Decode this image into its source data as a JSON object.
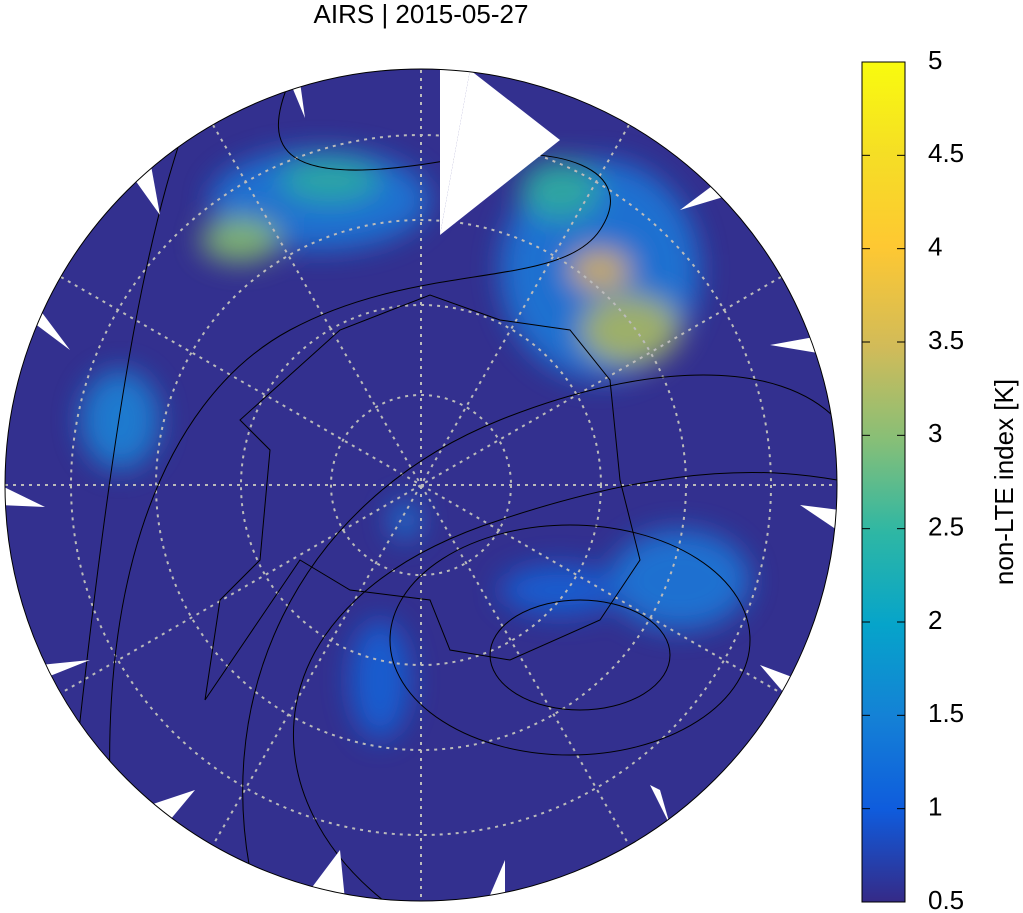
{
  "title": "AIRS | 2015-05-27",
  "colorbar": {
    "label": "non-LTE index [K]",
    "lim": [
      0.5,
      5
    ],
    "ticks": [
      0.5,
      1,
      1.5,
      2,
      2.5,
      3,
      3.5,
      4,
      4.5,
      5
    ]
  }
}
